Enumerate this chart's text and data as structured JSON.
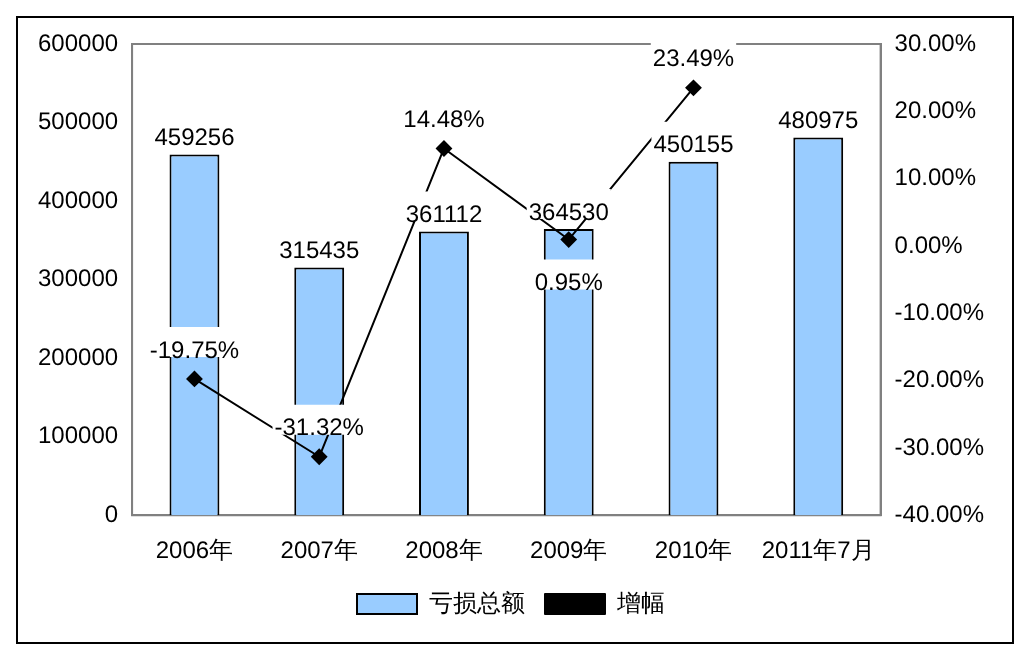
{
  "chart_data": {
    "type": "bar",
    "categories": [
      "2006年",
      "2007年",
      "2008年",
      "2009年",
      "2010年",
      "2011年7月"
    ],
    "series": [
      {
        "name": "亏损总额",
        "color": "#99ccff",
        "values": [
          459256,
          315435,
          361112,
          364530,
          450155,
          480975
        ],
        "value_labels": [
          "459256",
          "315435",
          "361112",
          "364530",
          "450155",
          "480975"
        ]
      },
      {
        "name": "增幅",
        "type": "line",
        "axis": "y2",
        "color": "#000000",
        "marker": "diamond",
        "values": [
          -19.75,
          -31.32,
          14.48,
          0.95,
          23.49,
          null
        ],
        "value_labels": [
          "-19.75%",
          "-31.32%",
          "14.48%",
          "0.95%",
          "23.49%",
          null
        ]
      }
    ],
    "ylim": [
      0,
      600000
    ],
    "yticks": [
      0,
      100000,
      200000,
      300000,
      400000,
      500000,
      600000
    ],
    "y2lim": [
      -40,
      30
    ],
    "y2ticks": [
      {
        "value": -40,
        "label": "-40.00%"
      },
      {
        "value": -30,
        "label": "-30.00%"
      },
      {
        "value": -20,
        "label": "-20.00%"
      },
      {
        "value": -10,
        "label": "-10.00%"
      },
      {
        "value": 0,
        "label": "0.00%"
      },
      {
        "value": 10,
        "label": "10.00%"
      },
      {
        "value": 20,
        "label": "20.00%"
      },
      {
        "value": 30,
        "label": "30.00%"
      }
    ],
    "grid": false,
    "legend": "bottom"
  }
}
